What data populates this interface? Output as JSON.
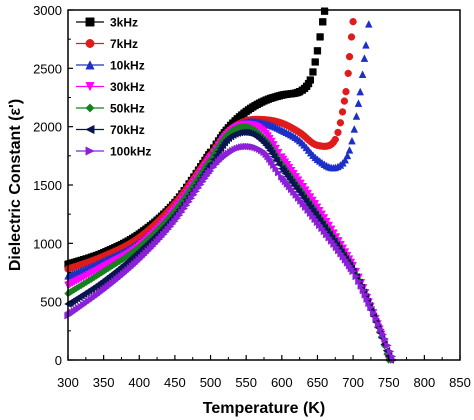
{
  "chart_data": {
    "type": "scatter",
    "xlabel": "Temperature (K)",
    "ylabel": "Dielectric Constant (ε')",
    "xlim": [
      300,
      850
    ],
    "ylim": [
      0,
      3000
    ],
    "x_ticks": [
      300,
      350,
      400,
      450,
      500,
      550,
      600,
      650,
      700,
      750,
      800,
      850
    ],
    "y_ticks": [
      0,
      500,
      1000,
      1500,
      2000,
      2500,
      3000
    ],
    "legend_position": "top-left",
    "series": [
      {
        "name": "3kHz",
        "color": "#000000",
        "marker": "square",
        "points": [
          [
            300,
            820
          ],
          [
            350,
            920
          ],
          [
            400,
            1080
          ],
          [
            450,
            1350
          ],
          [
            500,
            1780
          ],
          [
            525,
            1990
          ],
          [
            550,
            2130
          ],
          [
            575,
            2220
          ],
          [
            600,
            2270
          ],
          [
            625,
            2300
          ],
          [
            640,
            2400
          ],
          [
            650,
            2650
          ],
          [
            660,
            2990
          ]
        ]
      },
      {
        "name": "7kHz",
        "color": "#e01b1b",
        "marker": "circle",
        "points": [
          [
            300,
            780
          ],
          [
            350,
            890
          ],
          [
            400,
            1050
          ],
          [
            450,
            1340
          ],
          [
            500,
            1760
          ],
          [
            525,
            1960
          ],
          [
            550,
            2050
          ],
          [
            575,
            2060
          ],
          [
            600,
            2030
          ],
          [
            625,
            1950
          ],
          [
            650,
            1840
          ],
          [
            675,
            1890
          ],
          [
            690,
            2300
          ],
          [
            695,
            2600
          ],
          [
            700,
            2900
          ]
        ]
      },
      {
        "name": "10kHz",
        "color": "#1c30c8",
        "marker": "triangle-up",
        "points": [
          [
            300,
            720
          ],
          [
            350,
            850
          ],
          [
            400,
            1010
          ],
          [
            450,
            1310
          ],
          [
            500,
            1750
          ],
          [
            525,
            1960
          ],
          [
            550,
            2040
          ],
          [
            575,
            2030
          ],
          [
            600,
            1970
          ],
          [
            625,
            1880
          ],
          [
            650,
            1720
          ],
          [
            675,
            1650
          ],
          [
            695,
            1800
          ],
          [
            710,
            2300
          ],
          [
            718,
            2700
          ],
          [
            722,
            2880
          ]
        ]
      },
      {
        "name": "30kHz",
        "color": "#ff00ff",
        "marker": "triangle-down",
        "points": [
          [
            300,
            640
          ],
          [
            350,
            800
          ],
          [
            400,
            980
          ],
          [
            450,
            1300
          ],
          [
            500,
            1740
          ],
          [
            525,
            1950
          ],
          [
            550,
            2020
          ],
          [
            575,
            1960
          ],
          [
            600,
            1740
          ],
          [
            650,
            1310
          ],
          [
            700,
            810
          ],
          [
            725,
            460
          ],
          [
            740,
            220
          ],
          [
            750,
            0
          ]
        ]
      },
      {
        "name": "50kHz",
        "color": "#15801e",
        "marker": "diamond",
        "points": [
          [
            300,
            570
          ],
          [
            350,
            760
          ],
          [
            400,
            970
          ],
          [
            450,
            1280
          ],
          [
            500,
            1720
          ],
          [
            525,
            1940
          ],
          [
            550,
            2000
          ],
          [
            575,
            1900
          ],
          [
            600,
            1680
          ],
          [
            650,
            1250
          ],
          [
            700,
            780
          ],
          [
            725,
            440
          ],
          [
            740,
            200
          ],
          [
            750,
            0
          ]
        ]
      },
      {
        "name": "70kHz",
        "color": "#0a1550",
        "marker": "triangle-left",
        "points": [
          [
            300,
            480
          ],
          [
            350,
            680
          ],
          [
            400,
            930
          ],
          [
            450,
            1240
          ],
          [
            500,
            1680
          ],
          [
            525,
            1900
          ],
          [
            550,
            1950
          ],
          [
            575,
            1860
          ],
          [
            600,
            1640
          ],
          [
            650,
            1220
          ],
          [
            700,
            760
          ],
          [
            725,
            430
          ],
          [
            740,
            190
          ],
          [
            752,
            0
          ]
        ]
      },
      {
        "name": "100kHz",
        "color": "#8b20d8",
        "marker": "triangle-right",
        "points": [
          [
            300,
            380
          ],
          [
            350,
            600
          ],
          [
            400,
            860
          ],
          [
            450,
            1190
          ],
          [
            500,
            1620
          ],
          [
            525,
            1770
          ],
          [
            550,
            1830
          ],
          [
            575,
            1780
          ],
          [
            600,
            1570
          ],
          [
            650,
            1180
          ],
          [
            700,
            760
          ],
          [
            725,
            450
          ],
          [
            745,
            180
          ],
          [
            757,
            0
          ]
        ]
      }
    ]
  }
}
